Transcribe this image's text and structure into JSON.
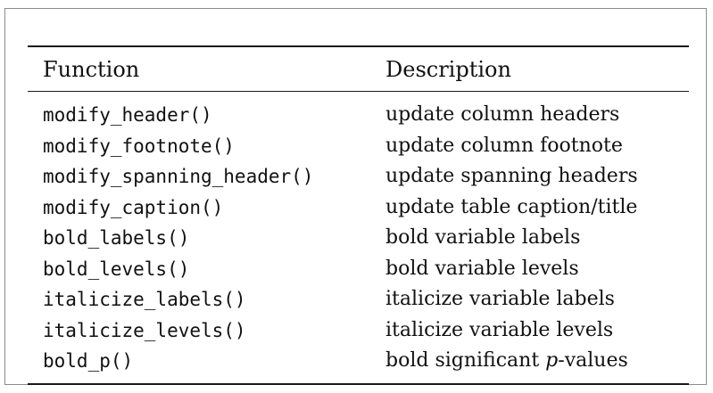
{
  "table": {
    "header": {
      "function": "Function",
      "description": "Description"
    },
    "rows": [
      {
        "function": "modify_header()",
        "description": "update column headers"
      },
      {
        "function": "modify_footnote()",
        "description": "update column footnote"
      },
      {
        "function": "modify_spanning_header()",
        "description": "update spanning headers"
      },
      {
        "function": "modify_caption()",
        "description": "update table caption/title"
      },
      {
        "function": "bold_labels()",
        "description": "bold variable labels"
      },
      {
        "function": "bold_levels()",
        "description": "bold variable levels"
      },
      {
        "function": "italicize_labels()",
        "description": "italicize variable labels"
      },
      {
        "function": "italicize_levels()",
        "description": "italicize variable levels"
      },
      {
        "function": "bold_p()",
        "description_prefix": "bold significant ",
        "description_italic": "p",
        "description_suffix": "-values"
      }
    ]
  }
}
